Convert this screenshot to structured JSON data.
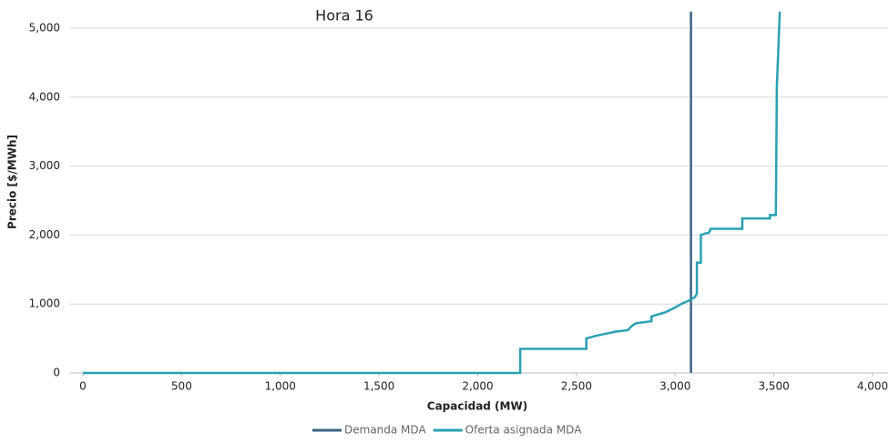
{
  "chart_data": {
    "type": "line",
    "title": "Hora 16",
    "x_label": "Capacidad (MW)",
    "y_label": "Precio [$/MWh]",
    "xlim": [
      0,
      4000
    ],
    "ylim": [
      0,
      5250
    ],
    "xticks": [
      0,
      500,
      {
        "value": 1000,
        "label": "1,000"
      },
      {
        "value": 1500,
        "label": "1,500"
      },
      {
        "value": 2000,
        "label": "2,000"
      },
      {
        "value": 2500,
        "label": "2,500"
      },
      {
        "value": 3000,
        "label": "3,000"
      },
      {
        "value": 3500,
        "label": "3,500"
      },
      {
        "value": 4000,
        "label": "4,000"
      }
    ],
    "yticks": [
      0,
      {
        "value": 1000,
        "label": "1,000"
      },
      {
        "value": 2000,
        "label": "2,000"
      },
      {
        "value": 3000,
        "label": "3,000"
      },
      {
        "value": 4000,
        "label": "4,000"
      },
      {
        "value": 5000,
        "label": "5,000"
      }
    ],
    "grid": true,
    "legend": "bottom",
    "series": [
      {
        "name": "Demanda MDA",
        "color": "#3b6384",
        "x": [
          3080,
          3080
        ],
        "values": [
          0,
          5240
        ]
      },
      {
        "name": "Oferta asignada MDA",
        "color": "#2aa0b3",
        "x": [
          0,
          2215,
          2215,
          2550,
          2550,
          2600,
          2650,
          2700,
          2760,
          2780,
          2800,
          2880,
          2880,
          2950,
          3000,
          3030,
          3070,
          3100,
          3110,
          3110,
          3130,
          3130,
          3160,
          3170,
          3180,
          3340,
          3340,
          3480,
          3480,
          3510,
          3515,
          3530
        ],
        "values": [
          0,
          0,
          350,
          350,
          500,
          540,
          570,
          600,
          620,
          680,
          720,
          750,
          820,
          880,
          950,
          1000,
          1050,
          1100,
          1150,
          1600,
          1600,
          2000,
          2030,
          2030,
          2090,
          2090,
          2240,
          2240,
          2290,
          2290,
          4150,
          5240
        ]
      }
    ]
  }
}
